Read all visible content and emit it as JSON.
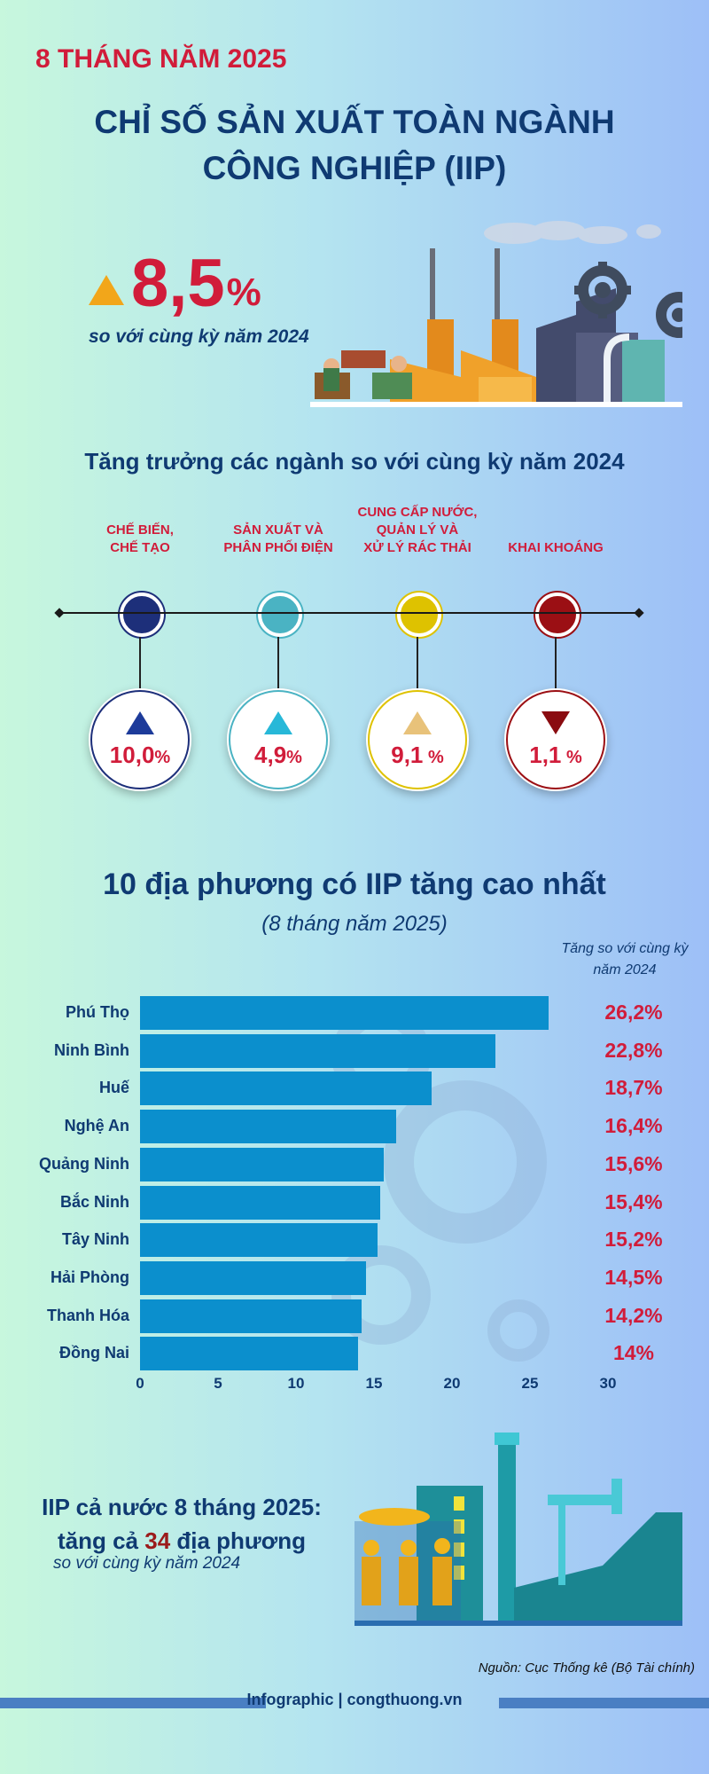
{
  "header": {
    "period": "8 THÁNG NĂM 2025",
    "title_line1": "CHỈ SỐ SẢN XUẤT TOÀN NGÀNH",
    "title_line2": "CÔNG NGHIỆP (IIP)"
  },
  "headline": {
    "value": "8,5",
    "unit": "%",
    "direction": "up",
    "comparison": "so với cùng kỳ năm 2024"
  },
  "industries": {
    "title": "Tăng trưởng các ngành so với cùng kỳ năm 2024",
    "items": [
      {
        "label": "CHẾ BIẾN,\nCHẾ TẠO",
        "value": "10,0",
        "unit": "%",
        "direction": "up",
        "color": "#1d2f7a",
        "tri_color": "#1d3b9a"
      },
      {
        "label": "SẢN XUẤT VÀ\nPHÂN PHỐI ĐIỆN",
        "value": "4,9",
        "unit": "%",
        "direction": "up",
        "color": "#4ab3c3",
        "tri_color": "#27b8d8"
      },
      {
        "label": "CUNG CẤP NƯỚC,\nQUẢN LÝ VÀ\nXỬ LÝ RÁC THẢI",
        "value": "9,1",
        "unit": " %",
        "direction": "up",
        "color": "#dec200",
        "tri_color": "#e8c27a"
      },
      {
        "label": "KHAI KHOÁNG",
        "value": "1,1",
        "unit": " %",
        "direction": "down",
        "color": "#9b0f14",
        "tri_color": "#8a0b10"
      }
    ]
  },
  "top10": {
    "title": "10 địa phương có IIP tăng cao nhất",
    "subtitle": "(8 tháng năm 2025)",
    "column_header": "Tăng so với cùng kỳ\nnăm 2024"
  },
  "chart_data": {
    "type": "bar",
    "orientation": "horizontal",
    "categories": [
      "Phú Thọ",
      "Ninh Bình",
      "Huế",
      "Nghệ An",
      "Quảng Ninh",
      "Bắc Ninh",
      "Tây Ninh",
      "Hải Phòng",
      "Thanh Hóa",
      "Đồng Nai"
    ],
    "values": [
      26.2,
      22.8,
      18.7,
      16.4,
      15.6,
      15.4,
      15.2,
      14.5,
      14.2,
      14
    ],
    "value_labels": [
      "26,2%",
      "22,8%",
      "18,7%",
      "16,4%",
      "15,6%",
      "15,4%",
      "15,2%",
      "14,5%",
      "14,2%",
      "14%"
    ],
    "xlim": [
      0,
      30
    ],
    "xticks": [
      "0",
      "5",
      "10",
      "15",
      "20",
      "25",
      "30"
    ],
    "bar_color": "#0b8fcd",
    "grid": false
  },
  "summary": {
    "line1": "IIP cả nước 8 tháng 2025:",
    "line2_prefix": "tăng cả ",
    "line2_number": "34",
    "line2_suffix": " địa phương",
    "comparison": "so với cùng kỳ năm 2024"
  },
  "source": "Nguồn: Cục Thống kê (Bộ Tài chính)",
  "footer": "Infographic | congthuong.vn"
}
